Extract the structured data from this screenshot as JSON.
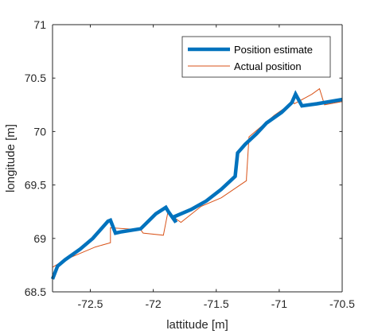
{
  "chart_data": {
    "type": "line",
    "title": "",
    "xlabel": "lattitude [m]",
    "ylabel": "longitude [m]",
    "xlim": [
      -72.8,
      -70.5
    ],
    "ylim": [
      68.5,
      71.0
    ],
    "xticks": [
      -72.5,
      -72.0,
      -71.5,
      -71.0,
      -70.5
    ],
    "xtick_labels": [
      "-72.5",
      "-72",
      "-71.5",
      "-71",
      "-70.5"
    ],
    "yticks": [
      68.5,
      69.0,
      69.5,
      70.0,
      70.5,
      71.0
    ],
    "ytick_labels": [
      "68.5",
      "69",
      "69.5",
      "70",
      "70.5",
      "71"
    ],
    "grid": false,
    "legend_location": "top-right",
    "series": [
      {
        "name": "Position estimate",
        "color": "#0072BD",
        "line_width": "thick",
        "x": [
          -72.8,
          -72.76,
          -72.7,
          -72.58,
          -72.48,
          -72.36,
          -72.34,
          -72.3,
          -72.26,
          -72.1,
          -71.98,
          -71.9,
          -71.88,
          -71.82,
          -71.84,
          -71.7,
          -71.58,
          -71.46,
          -71.35,
          -71.33,
          -71.27,
          -71.18,
          -71.1,
          -70.98,
          -70.9,
          -70.87,
          -70.82,
          -70.7,
          -70.5
        ],
        "y": [
          68.62,
          68.74,
          68.8,
          68.9,
          69.0,
          69.16,
          69.17,
          69.05,
          69.06,
          69.09,
          69.23,
          69.29,
          69.25,
          69.15,
          69.2,
          69.27,
          69.35,
          69.46,
          69.58,
          69.8,
          69.88,
          69.98,
          70.08,
          70.18,
          70.27,
          70.35,
          70.24,
          70.26,
          70.3
        ]
      },
      {
        "name": "Actual position",
        "color": "#D95319",
        "line_width": "thin",
        "x": [
          -72.8,
          -72.7,
          -72.58,
          -72.46,
          -72.34,
          -72.34,
          -72.1,
          -72.08,
          -71.92,
          -71.88,
          -71.84,
          -71.78,
          -71.62,
          -71.46,
          -71.26,
          -71.26,
          -71.24,
          -71.14,
          -71.04,
          -70.92,
          -70.9,
          -70.88,
          -70.74,
          -70.68,
          -70.64,
          -70.5
        ],
        "y": [
          68.73,
          68.8,
          68.86,
          68.92,
          68.96,
          69.1,
          69.08,
          69.05,
          69.03,
          69.27,
          69.2,
          69.15,
          69.3,
          69.38,
          69.54,
          69.56,
          69.95,
          70.05,
          70.15,
          70.25,
          70.3,
          70.26,
          70.35,
          70.4,
          70.25,
          70.28
        ]
      }
    ]
  }
}
